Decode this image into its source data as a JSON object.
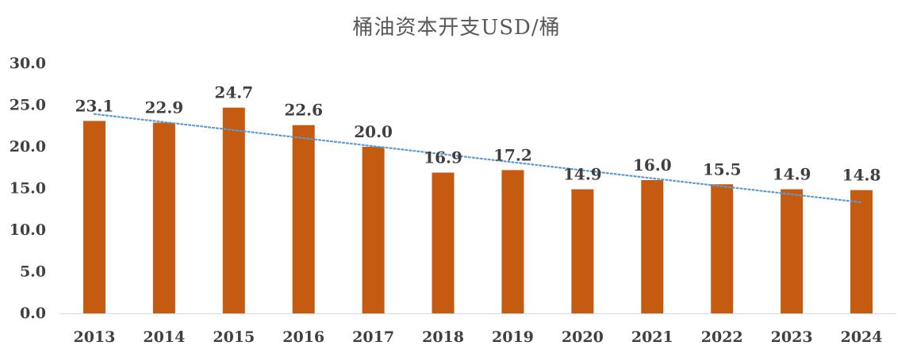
{
  "chart_data": {
    "type": "bar",
    "title": "桶油资本开支USD/桶",
    "categories": [
      "2013",
      "2014",
      "2015",
      "2016",
      "2017",
      "2018",
      "2019",
      "2020",
      "2021",
      "2022",
      "2023",
      "2024"
    ],
    "values": [
      23.1,
      22.9,
      24.7,
      22.6,
      20.0,
      16.9,
      17.2,
      14.9,
      16.0,
      15.5,
      14.9,
      14.8
    ],
    "data_labels": [
      "23.1",
      "22.9",
      "24.7",
      "22.6",
      "20.0",
      "16.9",
      "17.2",
      "14.9",
      "16.0",
      "15.5",
      "14.9",
      "14.8"
    ],
    "y_ticks": [
      "0.0",
      "5.0",
      "10.0",
      "15.0",
      "20.0",
      "25.0",
      "30.0"
    ],
    "y_tick_values": [
      0,
      5,
      10,
      15,
      20,
      25,
      30
    ],
    "ylim": [
      0,
      30
    ],
    "xlabel": "",
    "ylabel": "",
    "grid": false,
    "legend": "none",
    "trendline": {
      "type": "linear",
      "style": "dotted",
      "color": "#5b9bd5"
    },
    "bar_color": "#c55a11",
    "label_color": "#404040",
    "tick_color": "#404040",
    "axis_color": "#d9d9d9"
  }
}
